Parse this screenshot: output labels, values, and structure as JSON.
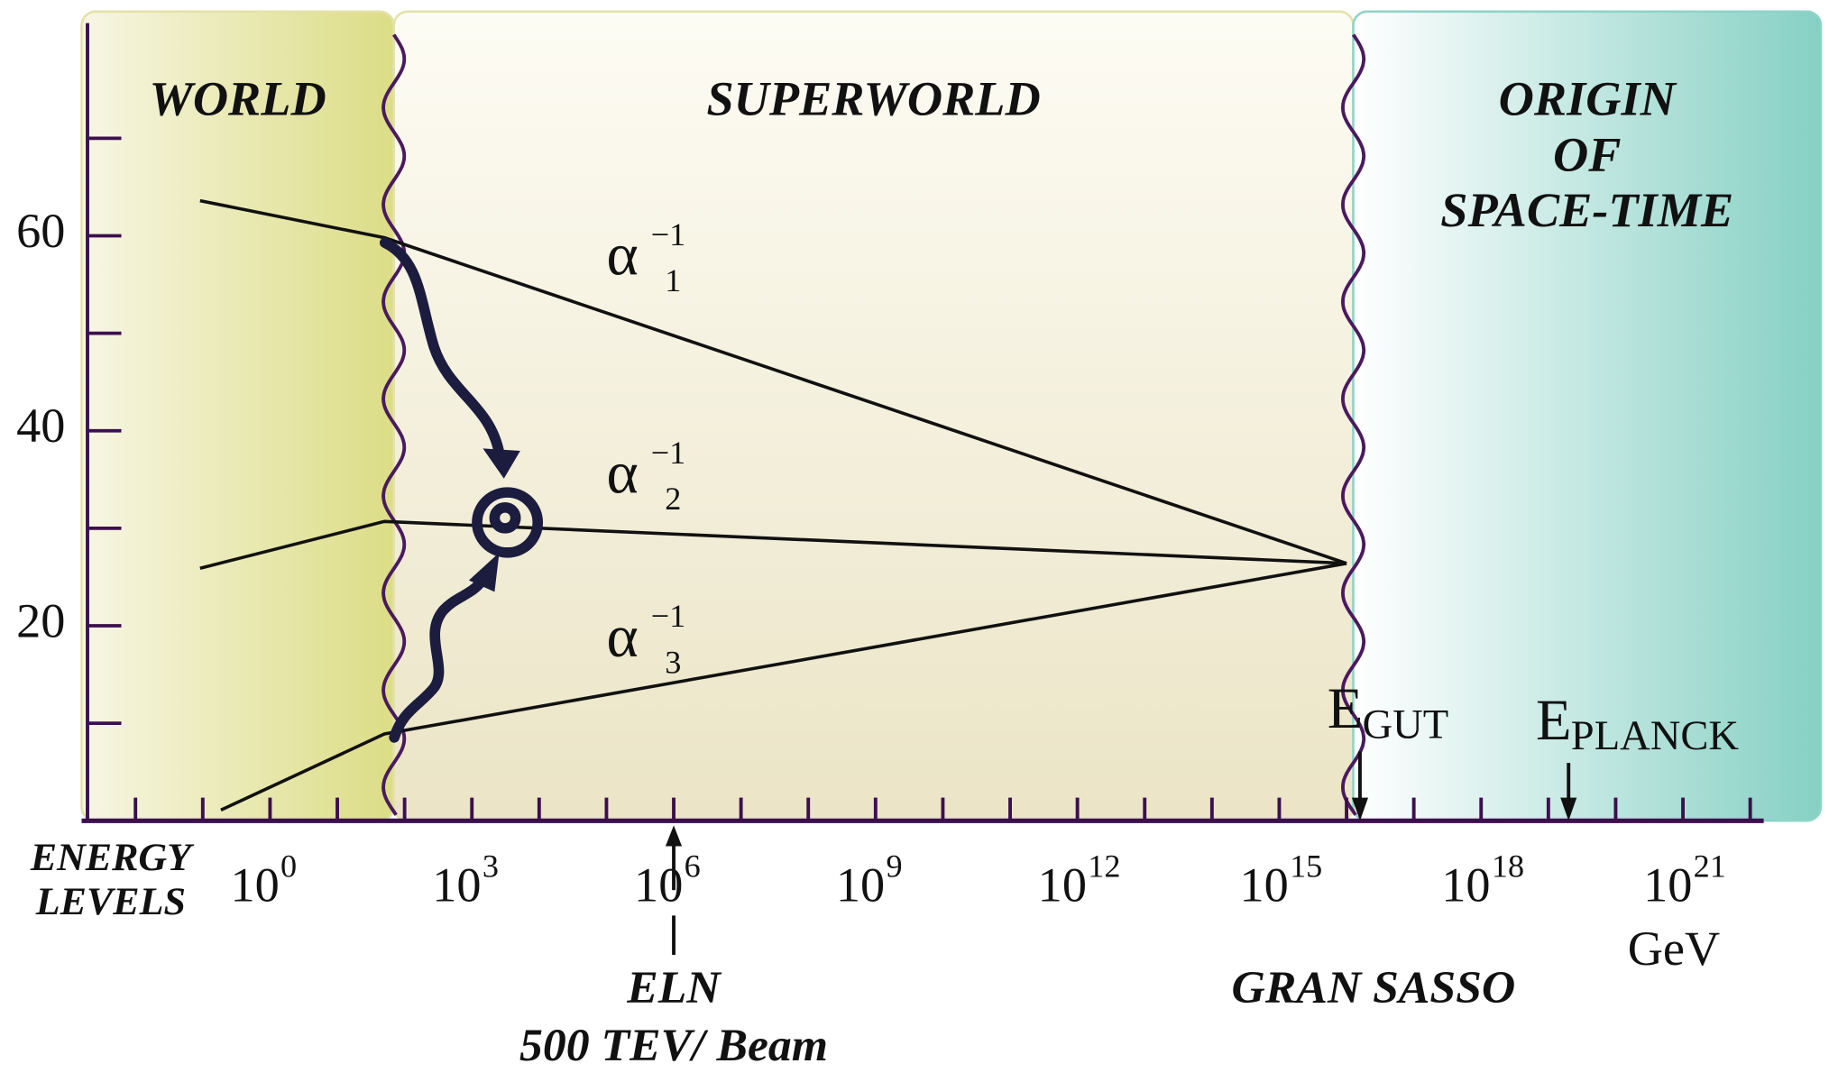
{
  "chart_data": {
    "type": "line",
    "xlim": [
      -2.8,
      22.2
    ],
    "ylim": [
      0,
      83
    ],
    "yticks": [
      20,
      40,
      60
    ],
    "yminorticks": [
      10,
      30,
      50,
      70
    ],
    "xticks": [
      {
        "value": 0,
        "label": "10",
        "sup": "0"
      },
      {
        "value": 3,
        "label": "10",
        "sup": "3"
      },
      {
        "value": 6,
        "label": "10",
        "sup": "6"
      },
      {
        "value": 9,
        "label": "10",
        "sup": "9"
      },
      {
        "value": 12,
        "label": "10",
        "sup": "12"
      },
      {
        "value": 15,
        "label": "10",
        "sup": "15"
      },
      {
        "value": 18,
        "label": "10",
        "sup": "18"
      },
      {
        "value": 21,
        "label": "10",
        "sup": "21"
      }
    ],
    "xminorticks": [
      -2,
      -1,
      0,
      1,
      2,
      3,
      4,
      5,
      6,
      7,
      8,
      9,
      10,
      11,
      12,
      13,
      14,
      15,
      16,
      17,
      18,
      19,
      20,
      21,
      22
    ],
    "x_axis_label": [
      "ENERGY",
      "LEVELS"
    ],
    "x_unit": "GeV",
    "regions": [
      {
        "label": [
          "WORLD"
        ],
        "x": [
          -2.8,
          1.84
        ],
        "colors": [
          "#f7f6e4",
          "#dcdd86"
        ]
      },
      {
        "label": [
          "SUPERWORLD"
        ],
        "x": [
          1.84,
          16.1
        ],
        "colors": [
          "#fdfcf4",
          "#ebe4c6"
        ]
      },
      {
        "label": [
          "ORIGIN",
          "OF",
          "SPACE-TIME"
        ],
        "x": [
          16.1,
          23.05
        ],
        "colors": [
          "#ffffff",
          "#86d0c4"
        ]
      }
    ],
    "series": [
      {
        "name": {
          "symbol": "α",
          "sup": "−1",
          "sub": "1"
        },
        "color": "#111111",
        "x": [
          -1.04,
          1.7,
          16.0
        ],
        "values": [
          63.6,
          59.8,
          26.4
        ]
      },
      {
        "name": {
          "symbol": "α",
          "sup": "−1",
          "sub": "2"
        },
        "color": "#111111",
        "x": [
          -1.04,
          1.7,
          16.0
        ],
        "values": [
          25.9,
          30.7,
          26.4
        ]
      },
      {
        "name": {
          "symbol": "α",
          "sup": "−1",
          "sub": "3"
        },
        "color": "#111111",
        "x": [
          -0.73,
          1.7,
          16.0
        ],
        "values": [
          1.1,
          8.9,
          26.4
        ]
      }
    ],
    "markers": [
      {
        "label": "E",
        "sub": "GUT",
        "x": 16.2
      },
      {
        "label": "E",
        "sub": "PLANCK",
        "x": 19.3
      }
    ],
    "annotations": [
      {
        "lines": [
          "ELN",
          "500 TEV/ Beam"
        ],
        "x": 6
      },
      {
        "lines": [
          "GRAN SASSO"
        ],
        "x": 16.4
      }
    ]
  }
}
